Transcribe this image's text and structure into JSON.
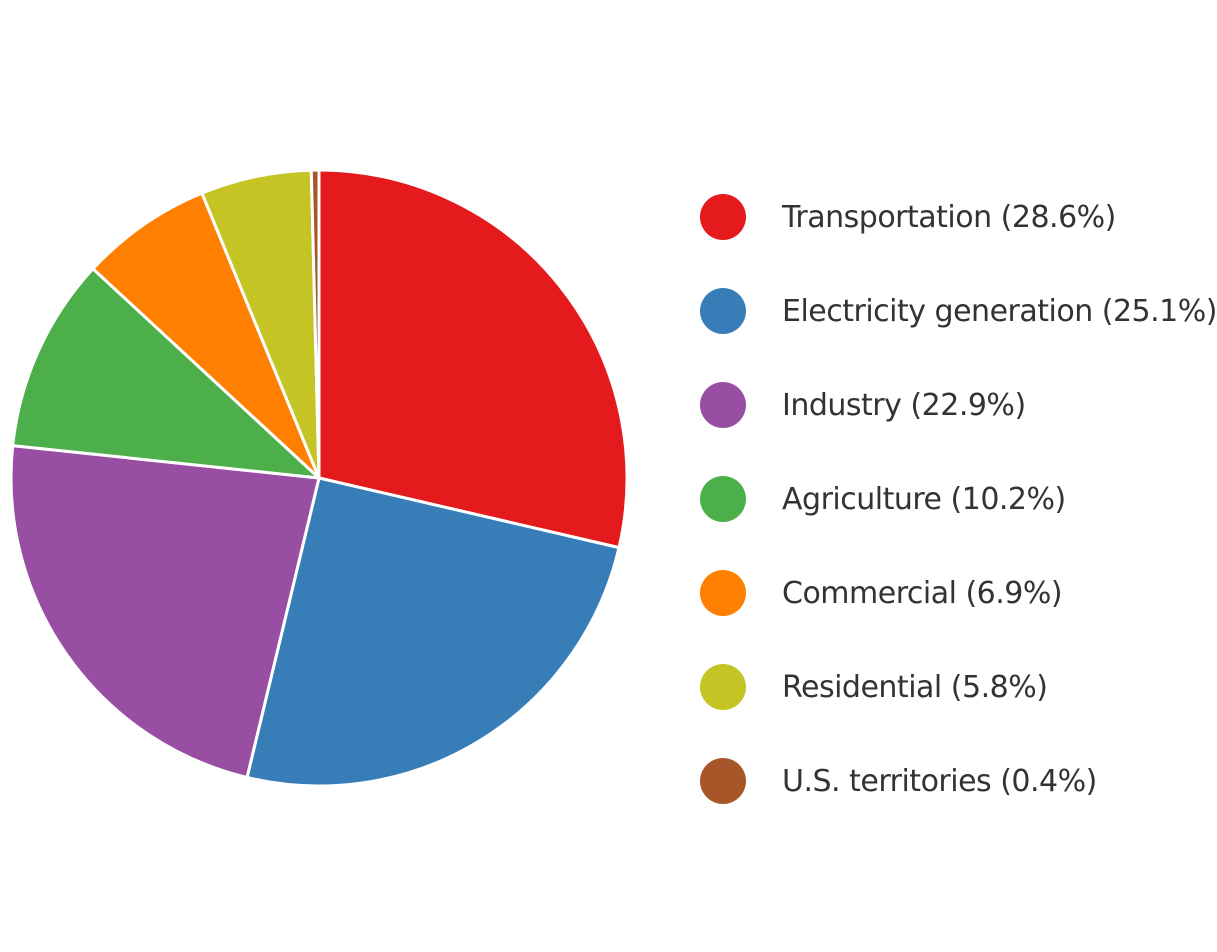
{
  "chart_data": {
    "type": "pie",
    "title": "",
    "unit": "%",
    "start_angle_deg": 0,
    "direction": "clockwise",
    "legend_position": "right",
    "slices": [
      {
        "name": "Transportation",
        "value": 28.6,
        "label": "Transportation (28.6%)",
        "color": "#e41a1c"
      },
      {
        "name": "Electricity generation",
        "value": 25.1,
        "label": "Electricity generation (25.1%)",
        "color": "#377eb8"
      },
      {
        "name": "Industry",
        "value": 22.9,
        "label": "Industry (22.9%)",
        "color": "#984ea3"
      },
      {
        "name": "Agriculture",
        "value": 10.2,
        "label": "Agriculture (10.2%)",
        "color": "#4daf4a"
      },
      {
        "name": "Commercial",
        "value": 6.9,
        "label": "Commercial (6.9%)",
        "color": "#ff7f00"
      },
      {
        "name": "Residential",
        "value": 5.8,
        "label": "Residential (5.8%)",
        "color": "#c4c424"
      },
      {
        "name": "U.S. territories",
        "value": 0.4,
        "label": "U.S. territories (0.4%)",
        "color": "#a65628"
      }
    ]
  }
}
